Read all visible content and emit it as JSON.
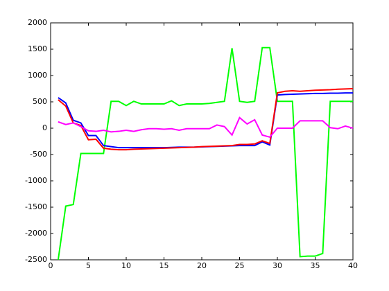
{
  "chart_data": {
    "type": "line",
    "x": [
      1,
      2,
      3,
      4,
      5,
      6,
      7,
      8,
      9,
      10,
      11,
      12,
      13,
      14,
      15,
      16,
      17,
      18,
      19,
      20,
      21,
      22,
      23,
      24,
      25,
      26,
      27,
      28,
      29,
      30,
      31,
      32,
      33,
      34,
      35,
      36,
      37,
      38,
      39,
      40
    ],
    "series": [
      {
        "color": "#00ff00",
        "values": [
          -2500,
          -1480,
          -1450,
          -480,
          -480,
          -480,
          -480,
          510,
          510,
          430,
          510,
          460,
          460,
          460,
          460,
          520,
          430,
          460,
          460,
          460,
          470,
          490,
          510,
          1520,
          510,
          490,
          510,
          1530,
          1530,
          510,
          510,
          510,
          -2440,
          -2430,
          -2430,
          -2380,
          510,
          510,
          510,
          510
        ]
      },
      {
        "color": "#0000ff",
        "values": [
          580,
          480,
          150,
          100,
          -140,
          -140,
          -330,
          -350,
          -370,
          -370,
          -370,
          -370,
          -370,
          -370,
          -370,
          -365,
          -360,
          -360,
          -360,
          -355,
          -350,
          -345,
          -340,
          -335,
          -330,
          -330,
          -330,
          -260,
          -320,
          630,
          640,
          645,
          650,
          655,
          660,
          660,
          665,
          665,
          670,
          670
        ]
      },
      {
        "color": "#ff0000",
        "values": [
          540,
          420,
          100,
          50,
          -220,
          -210,
          -380,
          -400,
          -410,
          -410,
          -400,
          -395,
          -390,
          -385,
          -380,
          -375,
          -370,
          -365,
          -360,
          -350,
          -345,
          -340,
          -335,
          -330,
          -310,
          -310,
          -300,
          -240,
          -290,
          670,
          700,
          710,
          700,
          710,
          720,
          725,
          730,
          740,
          745,
          750
        ]
      },
      {
        "color": "#ff00ff",
        "values": [
          120,
          70,
          100,
          30,
          -50,
          -60,
          -40,
          -70,
          -60,
          -40,
          -60,
          -30,
          -10,
          -10,
          -20,
          -10,
          -40,
          -10,
          -10,
          -10,
          -10,
          60,
          30,
          -130,
          200,
          80,
          160,
          -130,
          -170,
          0,
          0,
          0,
          140,
          140,
          140,
          140,
          10,
          -10,
          40,
          0
        ]
      }
    ],
    "xlim": [
      0,
      40
    ],
    "xticks": [
      0,
      5,
      10,
      15,
      20,
      25,
      30,
      35,
      40
    ],
    "ylim": [
      -2500,
      2000
    ],
    "yticks": [
      -2500,
      -2000,
      -1500,
      -1000,
      -500,
      0,
      500,
      1000,
      1500,
      2000
    ]
  }
}
